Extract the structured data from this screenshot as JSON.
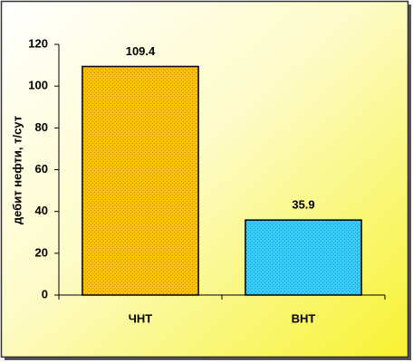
{
  "chart_data": {
    "type": "bar",
    "y_label": "дебит нефти, т/сут",
    "categories": [
      "ЧНТ",
      "ВНТ"
    ],
    "values": [
      109.4,
      35.9
    ],
    "colors": [
      "#FFC000",
      "#33CCFF"
    ],
    "ylim": [
      0,
      120
    ],
    "yticks": [
      0,
      20,
      40,
      60,
      80,
      100,
      120
    ],
    "grid": false
  }
}
